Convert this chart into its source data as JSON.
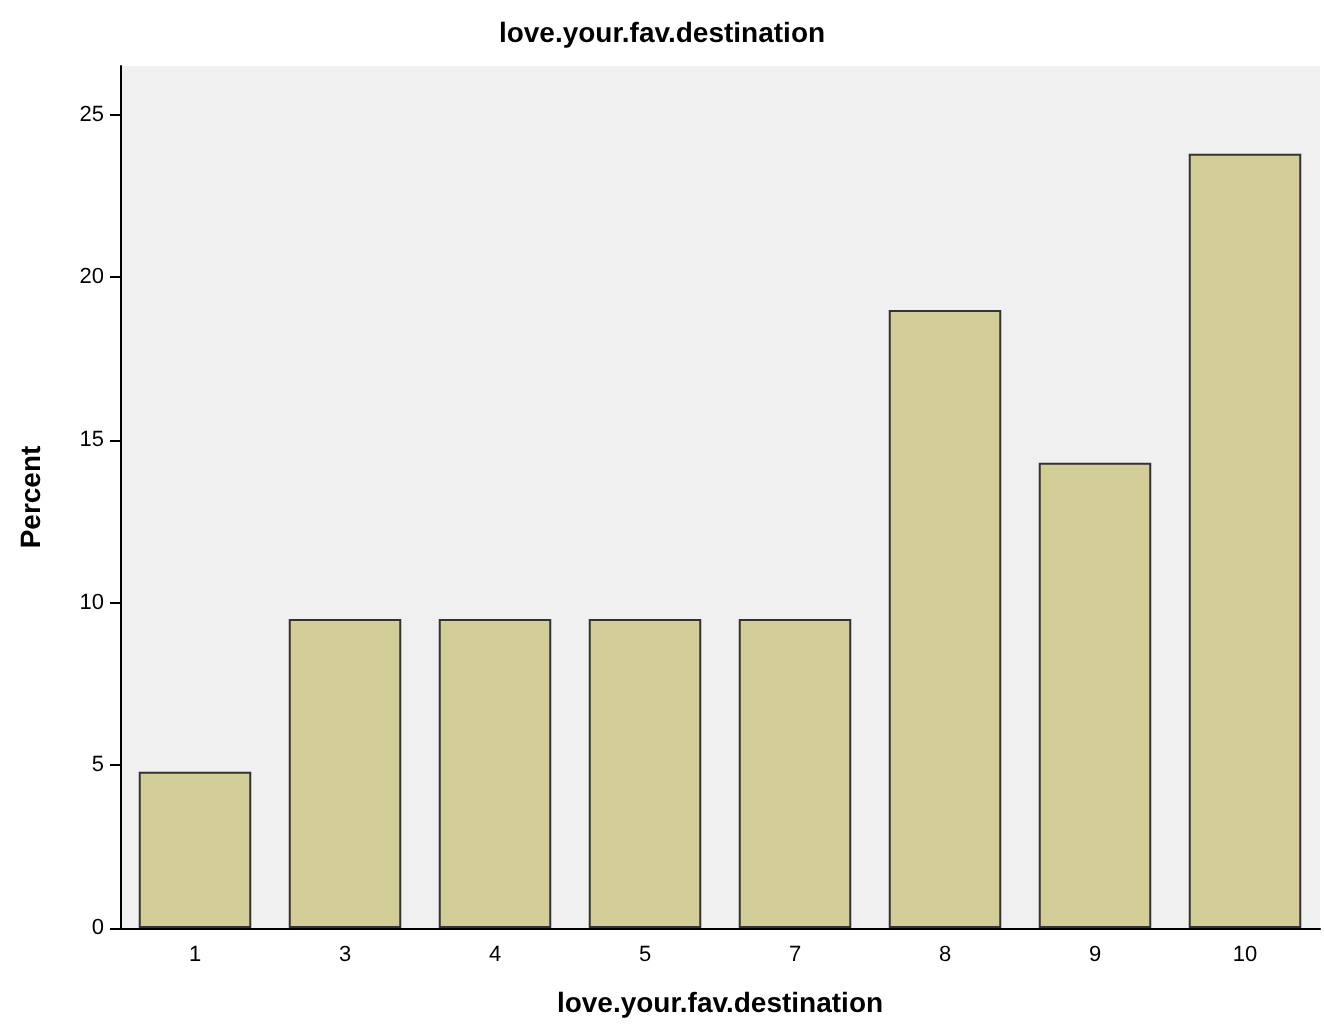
{
  "chart_data": {
    "type": "bar",
    "title": "love.your.fav.destination",
    "xlabel": "love.your.fav.destination",
    "ylabel": "Percent",
    "categories": [
      "1",
      "3",
      "4",
      "5",
      "7",
      "8",
      "9",
      "10"
    ],
    "values": [
      4.8,
      9.5,
      9.5,
      9.5,
      9.5,
      19.0,
      14.3,
      23.8
    ],
    "color": "#d3ce97",
    "ylim": [
      0,
      26.5
    ],
    "yticks": [
      0,
      5,
      10,
      15,
      20,
      25
    ],
    "grid": false
  }
}
